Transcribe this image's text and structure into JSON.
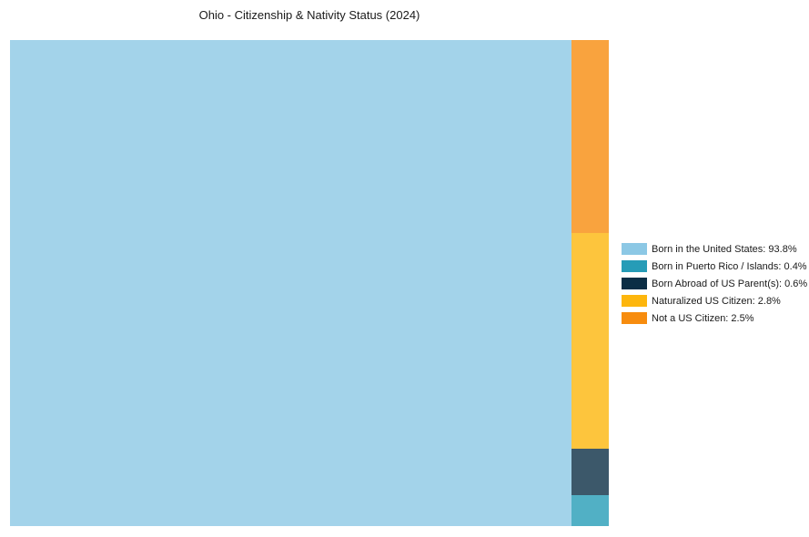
{
  "chart_data": {
    "type": "treemap",
    "title": "Ohio - Citizenship & Nativity Status (2024)",
    "categories": [
      "Born in the United States",
      "Born in Puerto Rico / Islands",
      "Born Abroad of US Parent(s)",
      "Naturalized US Citizen",
      "Not a US Citizen"
    ],
    "values": [
      93.8,
      0.4,
      0.6,
      2.8,
      2.5
    ],
    "unit": "%",
    "colors": [
      "#8cc8e5",
      "#269cb7",
      "#0b2e45",
      "#fdb60d",
      "#f78c0e"
    ],
    "background_color": "#ffffff",
    "legend": {
      "position": "right",
      "items": [
        "Born in the United States: 93.8%",
        "Born in Puerto Rico / Islands: 0.4%",
        "Born Abroad of US Parent(s): 0.6%",
        "Naturalized US Citizen: 2.8%",
        "Not a US Citizen: 2.5%"
      ]
    },
    "layout_hints": {
      "first_category_tile": "large tile on left, full height",
      "remainder_column_top_to_bottom": [
        "Not a US Citizen",
        "Naturalized US Citizen",
        "Born Abroad of US Parent(s)",
        "Born in Puerto Rico / Islands"
      ],
      "gridlines": false,
      "axes": false
    }
  }
}
